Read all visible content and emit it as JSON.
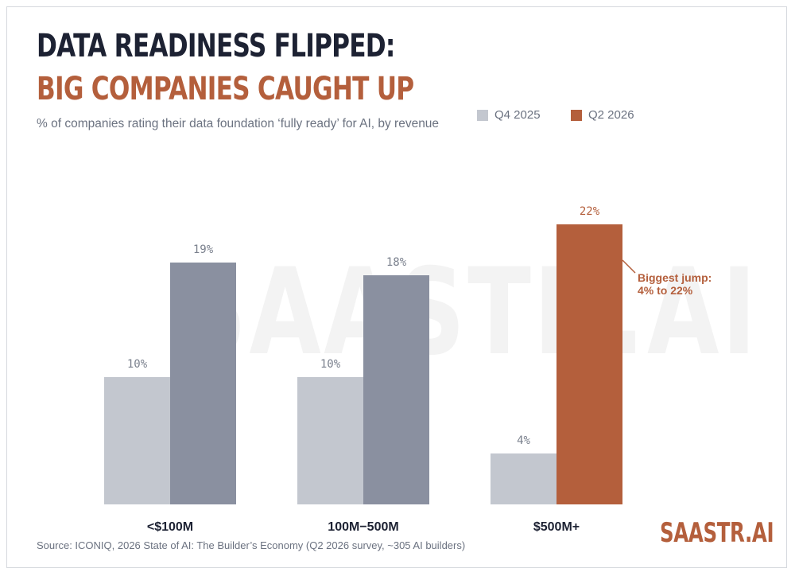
{
  "title": "DATA READINESS FLIPPED:",
  "title_highlight": "BIG COMPANIES CAUGHT UP",
  "subtitle": "% of companies rating their data foundation ‘fully ready’ for AI, by revenue",
  "watermark": "SAASTR.AI",
  "source": "Source: ICONIQ, 2026 State of AI: The Builder’s Economy (Q2 2026 survey, ~305 AI builders)",
  "brand": "SAASTR.AI",
  "colors": {
    "q4_2025": "#c3c7cf",
    "q2_2026": "#8a90a0",
    "highlight": "#b45f3c",
    "label_text": "#7a808d",
    "axis_label_text": "#1d2233"
  },
  "chart_data": {
    "type": "bar",
    "title": "DATA READINESS FLIPPED: BIG COMPANIES CAUGHT UP",
    "subtitle": "% of companies rating their data foundation ‘fully ready’ for AI, by revenue",
    "categories": [
      "<$100M",
      "100M−500M",
      "$500M+"
    ],
    "series": [
      {
        "name": "Q4 2025",
        "values": [
          10,
          10,
          4
        ],
        "labels": [
          "10%",
          "10%",
          "4%"
        ]
      },
      {
        "name": "Q2 2026",
        "values": [
          19,
          18,
          22
        ],
        "labels": [
          "19%",
          "18%",
          "22%"
        ]
      }
    ],
    "ylim": [
      0,
      22
    ],
    "grid": false,
    "legend_position": "top-right",
    "annotation": {
      "category": "$500M+",
      "series": "Q2 2026",
      "lines": [
        "Biggest jump:",
        "4% to 22%"
      ]
    }
  }
}
